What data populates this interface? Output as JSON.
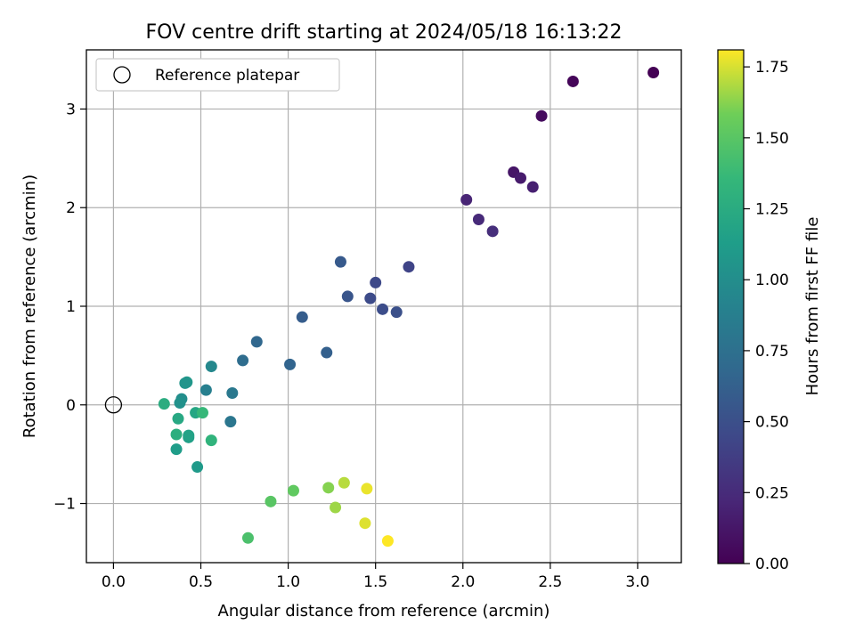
{
  "chart_data": {
    "type": "scatter",
    "title": "FOV centre drift starting at 2024/05/18 16:13:22",
    "xlabel": "Angular distance from reference (arcmin)",
    "ylabel": "Rotation from reference (arcmin)",
    "xlim": [
      -0.155,
      3.25
    ],
    "ylim": [
      -1.6,
      3.6
    ],
    "xticks": [
      0.0,
      0.5,
      1.0,
      1.5,
      2.0,
      2.5,
      3.0
    ],
    "xtick_labels": [
      "0.0",
      "0.5",
      "1.0",
      "1.5",
      "2.0",
      "2.5",
      "3.0"
    ],
    "yticks": [
      -1,
      0,
      1,
      2,
      3
    ],
    "ytick_labels": [
      "−1",
      "0",
      "1",
      "2",
      "3"
    ],
    "grid": true,
    "legend": {
      "location": "upper-left",
      "entries": [
        "Reference platepar"
      ]
    },
    "reference_point": {
      "x": 0.0,
      "y": 0.0
    },
    "colorbar": {
      "label": "Hours from first FF file",
      "colormap": "viridis",
      "range": [
        0.0,
        1.81
      ],
      "ticks": [
        0.0,
        0.25,
        0.5,
        0.75,
        1.0,
        1.25,
        1.5,
        1.75
      ],
      "tick_labels": [
        "0.00",
        "0.25",
        "0.50",
        "0.75",
        "1.00",
        "1.25",
        "1.50",
        "1.75"
      ]
    },
    "points": [
      {
        "x": 3.09,
        "y": 3.37,
        "hours": 0.0
      },
      {
        "x": 2.63,
        "y": 3.28,
        "hours": 0.03
      },
      {
        "x": 2.45,
        "y": 2.93,
        "hours": 0.06
      },
      {
        "x": 2.29,
        "y": 2.36,
        "hours": 0.12
      },
      {
        "x": 2.33,
        "y": 2.3,
        "hours": 0.15
      },
      {
        "x": 2.4,
        "y": 2.21,
        "hours": 0.18
      },
      {
        "x": 2.02,
        "y": 2.08,
        "hours": 0.21
      },
      {
        "x": 2.09,
        "y": 1.88,
        "hours": 0.24
      },
      {
        "x": 2.17,
        "y": 1.76,
        "hours": 0.27
      },
      {
        "x": 1.69,
        "y": 1.4,
        "hours": 0.42
      },
      {
        "x": 1.5,
        "y": 1.24,
        "hours": 0.45
      },
      {
        "x": 1.47,
        "y": 1.08,
        "hours": 0.47
      },
      {
        "x": 1.54,
        "y": 0.97,
        "hours": 0.48
      },
      {
        "x": 1.62,
        "y": 0.94,
        "hours": 0.5
      },
      {
        "x": 1.34,
        "y": 1.1,
        "hours": 0.54
      },
      {
        "x": 1.3,
        "y": 1.45,
        "hours": 0.58
      },
      {
        "x": 1.08,
        "y": 0.89,
        "hours": 0.6
      },
      {
        "x": 1.22,
        "y": 0.53,
        "hours": 0.62
      },
      {
        "x": 1.01,
        "y": 0.41,
        "hours": 0.66
      },
      {
        "x": 0.82,
        "y": 0.64,
        "hours": 0.68
      },
      {
        "x": 0.74,
        "y": 0.45,
        "hours": 0.72
      },
      {
        "x": 0.68,
        "y": 0.12,
        "hours": 0.82
      },
      {
        "x": 0.67,
        "y": -0.17,
        "hours": 0.8
      },
      {
        "x": 0.53,
        "y": 0.15,
        "hours": 0.88
      },
      {
        "x": 0.56,
        "y": 0.39,
        "hours": 0.95
      },
      {
        "x": 0.42,
        "y": 0.23,
        "hours": 1.08
      },
      {
        "x": 0.41,
        "y": 0.22,
        "hours": 1.05
      },
      {
        "x": 0.39,
        "y": 0.06,
        "hours": 1.0
      },
      {
        "x": 0.38,
        "y": 0.02,
        "hours": 1.03
      },
      {
        "x": 0.48,
        "y": -0.63,
        "hours": 1.1
      },
      {
        "x": 0.36,
        "y": -0.45,
        "hours": 1.12
      },
      {
        "x": 0.43,
        "y": -0.33,
        "hours": 1.14
      },
      {
        "x": 0.43,
        "y": -0.31,
        "hours": 1.17
      },
      {
        "x": 0.47,
        "y": -0.08,
        "hours": 1.2
      },
      {
        "x": 0.37,
        "y": -0.14,
        "hours": 1.22
      },
      {
        "x": 0.29,
        "y": 0.01,
        "hours": 1.26
      },
      {
        "x": 0.36,
        "y": -0.3,
        "hours": 1.28
      },
      {
        "x": 0.56,
        "y": -0.36,
        "hours": 1.32
      },
      {
        "x": 0.51,
        "y": -0.08,
        "hours": 1.36
      },
      {
        "x": 0.77,
        "y": -1.35,
        "hours": 1.45
      },
      {
        "x": 0.9,
        "y": -0.98,
        "hours": 1.5
      },
      {
        "x": 1.03,
        "y": -0.87,
        "hours": 1.53
      },
      {
        "x": 1.23,
        "y": -0.84,
        "hours": 1.62
      },
      {
        "x": 1.27,
        "y": -1.04,
        "hours": 1.66
      },
      {
        "x": 1.32,
        "y": -0.79,
        "hours": 1.7
      },
      {
        "x": 1.45,
        "y": -0.85,
        "hours": 1.78
      },
      {
        "x": 1.44,
        "y": -1.2,
        "hours": 1.76
      },
      {
        "x": 1.57,
        "y": -1.38,
        "hours": 1.81
      }
    ]
  }
}
